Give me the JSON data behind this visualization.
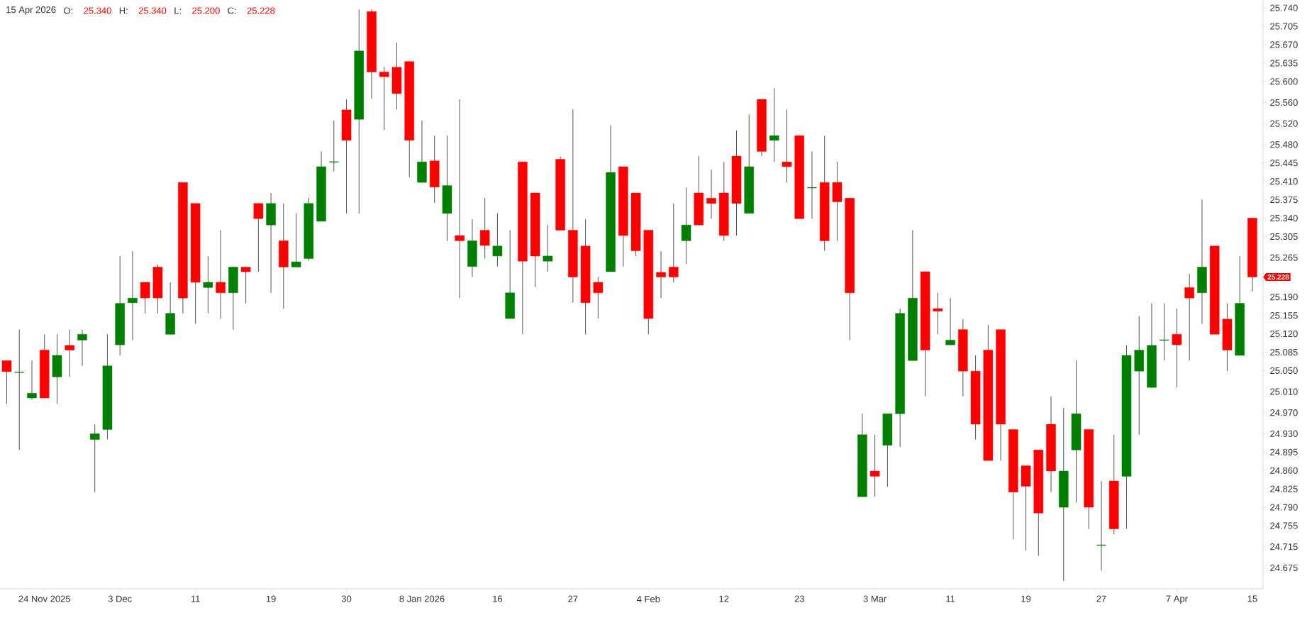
{
  "chart_data": {
    "type": "candlestick",
    "title": "15 Apr 2026",
    "annotations": [
      "O:",
      "25.340",
      "H:",
      "25.340",
      "L:",
      "25.200",
      "C:",
      "25.228",
      "25.228"
    ],
    "categories": [
      null,
      null,
      null,
      "24 Nov 2025",
      null,
      null,
      null,
      null,
      null,
      "3 Dec",
      null,
      null,
      null,
      null,
      null,
      "11",
      null,
      null,
      null,
      null,
      null,
      "19",
      null,
      null,
      null,
      null,
      null,
      "30",
      null,
      null,
      null,
      null,
      null,
      "8 Jan 2026",
      null,
      null,
      null,
      null,
      null,
      "16",
      null,
      null,
      null,
      null,
      null,
      "27",
      null,
      null,
      null,
      null,
      null,
      "4 Feb",
      null,
      null,
      null,
      null,
      null,
      "12",
      null,
      null,
      null,
      null,
      null,
      "23",
      null,
      null,
      null,
      null,
      null,
      "3 Mar",
      null,
      null,
      null,
      null,
      null,
      "11",
      null,
      null,
      null,
      null,
      null,
      "19",
      null,
      null,
      null,
      null,
      null,
      "27",
      null,
      null,
      null,
      null,
      null,
      "7 Apr",
      null,
      null,
      null,
      null,
      null,
      "15"
    ],
    "ohlc": [
      [
        25.069,
        25.069,
        24.987,
        25.048
      ],
      [
        25.047,
        25.128,
        24.899,
        25.047
      ],
      [
        24.998,
        25.069,
        24.995,
        25.007
      ],
      [
        25.089,
        25.119,
        24.998,
        24.998
      ],
      [
        25.038,
        25.119,
        24.987,
        25.079
      ],
      [
        25.098,
        25.128,
        25.038,
        25.089
      ],
      [
        25.108,
        25.128,
        25.059,
        25.119
      ],
      [
        24.919,
        24.948,
        24.819,
        24.93
      ],
      [
        24.938,
        25.119,
        24.919,
        25.059
      ],
      [
        25.099,
        25.268,
        25.079,
        25.178
      ],
      [
        25.179,
        25.277,
        25.108,
        25.188
      ],
      [
        25.218,
        25.218,
        25.159,
        25.188
      ],
      [
        25.247,
        25.252,
        25.159,
        25.188
      ],
      [
        25.119,
        25.218,
        25.119,
        25.159
      ],
      [
        25.408,
        25.408,
        25.159,
        25.188
      ],
      [
        25.368,
        25.368,
        25.139,
        25.218
      ],
      [
        25.208,
        25.268,
        25.159,
        25.218
      ],
      [
        25.218,
        25.317,
        25.148,
        25.198
      ],
      [
        25.198,
        25.247,
        25.128,
        25.247
      ],
      [
        25.247,
        25.247,
        25.178,
        25.238
      ],
      [
        25.368,
        25.368,
        25.238,
        25.339
      ],
      [
        25.327,
        25.388,
        25.198,
        25.368
      ],
      [
        25.297,
        25.368,
        25.168,
        25.247
      ],
      [
        25.247,
        25.349,
        25.247,
        25.257
      ],
      [
        25.263,
        25.379,
        25.259,
        25.368
      ],
      [
        25.334,
        25.467,
        25.334,
        25.438
      ],
      [
        25.447,
        25.526,
        25.429,
        25.447
      ],
      [
        25.546,
        25.566,
        25.349,
        25.488
      ],
      [
        25.528,
        25.737,
        25.349,
        25.658
      ],
      [
        25.733,
        25.737,
        25.567,
        25.618
      ],
      [
        25.618,
        25.628,
        25.508,
        25.609
      ],
      [
        25.627,
        25.674,
        25.547,
        25.577
      ],
      [
        25.638,
        25.638,
        25.418,
        25.488
      ],
      [
        25.408,
        25.526,
        25.408,
        25.447
      ],
      [
        25.449,
        25.497,
        25.369,
        25.399
      ],
      [
        25.349,
        25.497,
        25.297,
        25.402
      ],
      [
        25.307,
        25.566,
        25.188,
        25.297
      ],
      [
        25.248,
        25.338,
        25.228,
        25.297
      ],
      [
        25.317,
        25.379,
        25.263,
        25.288
      ],
      [
        25.268,
        25.349,
        25.248,
        25.287
      ],
      [
        25.149,
        25.317,
        25.149,
        25.198
      ],
      [
        25.447,
        25.447,
        25.119,
        25.258
      ],
      [
        25.388,
        25.388,
        25.209,
        25.268
      ],
      [
        25.258,
        25.327,
        25.238,
        25.268
      ],
      [
        25.452,
        25.457,
        25.317,
        25.317
      ],
      [
        25.317,
        25.547,
        25.179,
        25.228
      ],
      [
        25.287,
        25.338,
        25.119,
        25.179
      ],
      [
        25.218,
        25.228,
        25.149,
        25.198
      ],
      [
        25.238,
        25.517,
        25.238,
        25.427
      ],
      [
        25.438,
        25.438,
        25.248,
        25.307
      ],
      [
        25.388,
        25.388,
        25.268,
        25.278
      ],
      [
        25.317,
        25.317,
        25.119,
        25.149
      ],
      [
        25.237,
        25.277,
        25.188,
        25.228
      ],
      [
        25.247,
        25.368,
        25.218,
        25.228
      ],
      [
        25.297,
        25.398,
        25.253,
        25.327
      ],
      [
        25.388,
        25.458,
        25.327,
        25.327
      ],
      [
        25.378,
        25.432,
        25.339,
        25.368
      ],
      [
        25.388,
        25.447,
        25.297,
        25.307
      ],
      [
        25.458,
        25.507,
        25.307,
        25.368
      ],
      [
        25.349,
        25.537,
        25.349,
        25.438
      ],
      [
        25.566,
        25.566,
        25.458,
        25.467
      ],
      [
        25.488,
        25.587,
        25.447,
        25.497
      ],
      [
        25.447,
        25.546,
        25.408,
        25.438
      ],
      [
        25.497,
        25.497,
        25.339,
        25.339
      ],
      [
        25.398,
        25.467,
        25.339,
        25.398
      ],
      [
        25.408,
        25.497,
        25.278,
        25.297
      ],
      [
        25.408,
        25.447,
        25.297,
        25.371
      ],
      [
        25.378,
        25.378,
        25.108,
        25.198
      ],
      [
        24.81,
        24.968,
        24.81,
        24.928
      ],
      [
        24.859,
        24.928,
        24.81,
        24.849
      ],
      [
        24.908,
        24.968,
        24.829,
        24.968
      ],
      [
        24.968,
        25.168,
        24.905,
        25.159
      ],
      [
        25.069,
        25.317,
        25.069,
        25.188
      ],
      [
        25.238,
        25.238,
        25.001,
        25.089
      ],
      [
        25.168,
        25.198,
        25.119,
        25.163
      ],
      [
        25.099,
        25.188,
        25.099,
        25.108
      ],
      [
        25.128,
        25.148,
        25.001,
        25.049
      ],
      [
        25.049,
        25.079,
        24.919,
        24.948
      ],
      [
        25.089,
        25.137,
        24.879,
        24.879
      ],
      [
        25.128,
        25.128,
        24.879,
        24.948
      ],
      [
        24.938,
        24.938,
        24.729,
        24.819
      ],
      [
        24.869,
        24.869,
        24.708,
        24.83
      ],
      [
        24.899,
        24.899,
        24.698,
        24.779
      ],
      [
        24.948,
        25.001,
        24.819,
        24.859
      ],
      [
        24.79,
        24.979,
        24.65,
        24.859
      ],
      [
        24.899,
        25.069,
        24.799,
        24.968
      ],
      [
        24.938,
        24.938,
        24.749,
        24.79
      ],
      [
        24.718,
        24.84,
        24.669,
        24.718
      ],
      [
        24.84,
        24.928,
        24.739,
        24.749
      ],
      [
        24.849,
        25.098,
        24.749,
        25.079
      ],
      [
        25.049,
        25.153,
        24.928,
        25.089
      ],
      [
        25.018,
        25.178,
        25.018,
        25.098
      ],
      [
        25.108,
        25.178,
        25.069,
        25.108
      ],
      [
        25.119,
        25.168,
        25.018,
        25.099
      ],
      [
        25.208,
        25.234,
        25.069,
        25.188
      ],
      [
        25.198,
        25.375,
        25.139,
        25.247
      ],
      [
        25.287,
        25.287,
        25.119,
        25.119
      ],
      [
        25.148,
        25.178,
        25.049,
        25.089
      ],
      [
        25.079,
        25.268,
        25.079,
        25.178
      ],
      [
        25.34,
        25.34,
        25.2,
        25.228
      ]
    ],
    "colors": [
      "#ff0000",
      "#008000",
      "#008000",
      "#ff0000",
      "#008000",
      "#ff0000",
      "#008000",
      "#008000",
      "#008000",
      "#008000",
      "#008000",
      "#ff0000",
      "#ff0000",
      "#008000",
      "#ff0000",
      "#ff0000",
      "#008000",
      "#ff0000",
      "#008000",
      "#ff0000",
      "#ff0000",
      "#008000",
      "#ff0000",
      "#008000",
      "#008000",
      "#008000",
      "#008000",
      "#ff0000",
      "#008000",
      "#ff0000",
      "#ff0000",
      "#ff0000",
      "#ff0000",
      "#008000",
      "#ff0000",
      "#008000",
      "#ff0000",
      "#008000",
      "#ff0000",
      "#008000",
      "#008000",
      "#ff0000",
      "#ff0000",
      "#008000",
      "#ff0000",
      "#ff0000",
      "#ff0000",
      "#ff0000",
      "#008000",
      "#ff0000",
      "#ff0000",
      "#ff0000",
      "#ff0000",
      "#ff0000",
      "#008000",
      "#ff0000",
      "#ff0000",
      "#ff0000",
      "#ff0000",
      "#008000",
      "#ff0000",
      "#008000",
      "#ff0000",
      "#ff0000",
      "#008000",
      "#ff0000",
      "#ff0000",
      "#ff0000",
      "#008000",
      "#ff0000",
      "#008000",
      "#008000",
      "#008000",
      "#ff0000",
      "#ff0000",
      "#008000",
      "#ff0000",
      "#ff0000",
      "#ff0000",
      "#ff0000",
      "#ff0000",
      "#ff0000",
      "#ff0000",
      "#ff0000",
      "#008000",
      "#008000",
      "#ff0000",
      "#008000",
      "#ff0000",
      "#008000",
      "#008000",
      "#008000",
      "#008000",
      "#ff0000",
      "#ff0000",
      "#008000",
      "#ff0000",
      "#ff0000",
      "#008000",
      "#ff0000"
    ],
    "ylim": [
      24.635,
      25.755
    ],
    "yticks": [
      {
        "value": 24.675,
        "label": "24.675"
      },
      {
        "value": 24.715,
        "label": "24.715"
      },
      {
        "value": 24.755,
        "label": "24.755"
      },
      {
        "value": 24.79,
        "label": "24.790"
      },
      {
        "value": 24.825,
        "label": "24.825"
      },
      {
        "value": 24.86,
        "label": "24.860"
      },
      {
        "value": 24.895,
        "label": "24.895"
      },
      {
        "value": 24.93,
        "label": "24.930"
      },
      {
        "value": 24.97,
        "label": "24.970"
      },
      {
        "value": 25.01,
        "label": "25.010"
      },
      {
        "value": 25.05,
        "label": "25.050"
      },
      {
        "value": 25.085,
        "label": "25.085"
      },
      {
        "value": 25.12,
        "label": "25.120"
      },
      {
        "value": 25.155,
        "label": "25.155"
      },
      {
        "value": 25.19,
        "label": "25.190"
      },
      {
        "value": 25.23,
        "label": null
      },
      {
        "value": 25.265,
        "label": "25.265"
      },
      {
        "value": 25.305,
        "label": "25.305"
      },
      {
        "value": 25.34,
        "label": "25.340"
      },
      {
        "value": 25.375,
        "label": "25.375"
      },
      {
        "value": 25.41,
        "label": "25.410"
      },
      {
        "value": 25.445,
        "label": "25.445"
      },
      {
        "value": 25.48,
        "label": "25.480"
      },
      {
        "value": 25.52,
        "label": "25.520"
      },
      {
        "value": 25.56,
        "label": "25.560"
      },
      {
        "value": 25.6,
        "label": "25.600"
      },
      {
        "value": 25.635,
        "label": "25.635"
      },
      {
        "value": 25.67,
        "label": "25.670"
      },
      {
        "value": 25.705,
        "label": "25.705"
      },
      {
        "value": 25.74,
        "label": "25.740"
      }
    ]
  }
}
